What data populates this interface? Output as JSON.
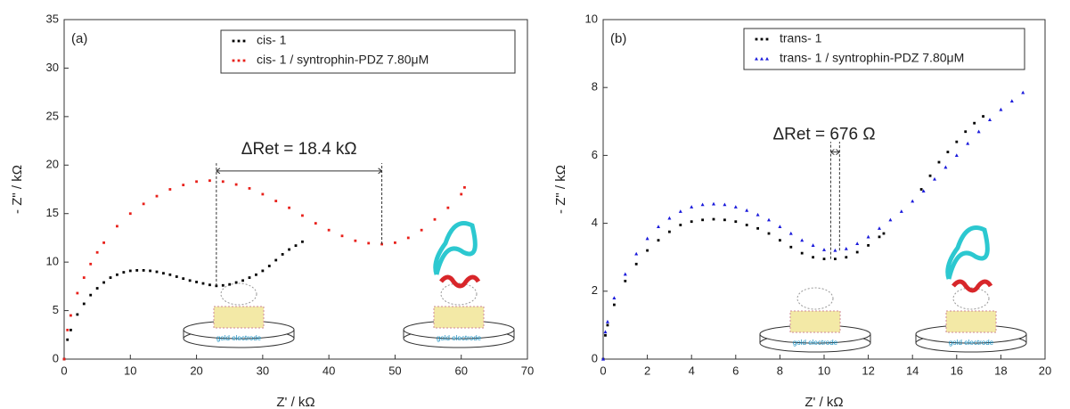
{
  "chart_data": [
    {
      "type": "scatter",
      "panel_label": "(a)",
      "x_label": "Z'  / kΩ",
      "y_label": "- Z\" / kΩ",
      "xlim": [
        0,
        70
      ],
      "ylim": [
        0,
        35
      ],
      "xticks": [
        0,
        10,
        20,
        30,
        40,
        50,
        60,
        70
      ],
      "yticks": [
        0,
        5,
        10,
        15,
        20,
        25,
        30,
        35
      ],
      "annotation": "ΔRet = 18.4 kΩ",
      "insets": [
        "gold electrode",
        "gold electrode"
      ],
      "series": [
        {
          "name": "cis- 1",
          "color": "#000000",
          "marker": "square",
          "x": [
            0,
            0.5,
            1,
            2,
            3,
            4,
            5,
            6,
            7,
            8,
            9,
            10,
            11,
            12,
            13,
            14,
            15,
            16,
            17,
            18,
            19,
            20,
            21,
            22,
            23,
            24,
            25,
            26,
            27,
            28,
            29,
            30,
            31,
            32,
            33,
            34,
            35,
            36
          ],
          "values": [
            0,
            2.0,
            3.0,
            4.6,
            5.7,
            6.6,
            7.3,
            7.9,
            8.4,
            8.7,
            8.95,
            9.1,
            9.15,
            9.15,
            9.1,
            9.0,
            8.85,
            8.7,
            8.5,
            8.3,
            8.1,
            7.95,
            7.8,
            7.65,
            7.55,
            7.6,
            7.7,
            7.9,
            8.1,
            8.4,
            8.7,
            9.1,
            9.6,
            10.2,
            10.8,
            11.3,
            11.7,
            12.1
          ]
        },
        {
          "name": "cis- 1 / syntrophin-PDZ 7.80μM",
          "color": "#e8201a",
          "marker": "square",
          "x": [
            0,
            0.5,
            1,
            2,
            3,
            4,
            5,
            6,
            8,
            10,
            12,
            14,
            16,
            18,
            20,
            22,
            24,
            26,
            28,
            30,
            32,
            34,
            36,
            38,
            40,
            42,
            44,
            46,
            48,
            50,
            52,
            54,
            56,
            58,
            60,
            60.5
          ],
          "values": [
            0,
            3.0,
            4.5,
            6.8,
            8.4,
            9.8,
            11.0,
            12.0,
            13.7,
            15.0,
            16.0,
            16.8,
            17.5,
            17.95,
            18.3,
            18.4,
            18.3,
            18.0,
            17.6,
            17.0,
            16.3,
            15.6,
            14.8,
            14.0,
            13.3,
            12.7,
            12.2,
            11.95,
            11.85,
            12.0,
            12.5,
            13.3,
            14.4,
            15.6,
            17.0,
            17.7
          ]
        }
      ]
    },
    {
      "type": "scatter",
      "panel_label": "(b)",
      "x_label": "Z' / kΩ",
      "y_label": "- Z\" / kΩ",
      "xlim": [
        0,
        20
      ],
      "ylim": [
        0,
        10
      ],
      "xticks": [
        0,
        2,
        4,
        6,
        8,
        10,
        12,
        14,
        16,
        18,
        20
      ],
      "yticks": [
        0,
        2,
        4,
        6,
        8,
        10
      ],
      "annotation": "ΔRet = 676 Ω",
      "insets": [
        "gold electrode",
        "gold electrode"
      ],
      "series": [
        {
          "name": "trans- 1",
          "color": "#000000",
          "marker": "square",
          "x": [
            0,
            0.1,
            0.2,
            0.5,
            1,
            1.5,
            2,
            2.5,
            3,
            3.5,
            4,
            4.5,
            5,
            5.5,
            6,
            6.5,
            7,
            7.5,
            8,
            8.5,
            9,
            9.5,
            10,
            10.5,
            11,
            11.5,
            12,
            12.5,
            12.7,
            14.4,
            14.8,
            15.2,
            15.6,
            16,
            16.4,
            16.8,
            17.2
          ],
          "values": [
            0,
            0.7,
            1.0,
            1.6,
            2.3,
            2.8,
            3.2,
            3.5,
            3.75,
            3.95,
            4.05,
            4.1,
            4.12,
            4.1,
            4.05,
            3.95,
            3.85,
            3.7,
            3.5,
            3.3,
            3.12,
            3.0,
            2.95,
            2.95,
            3.0,
            3.15,
            3.35,
            3.6,
            3.7,
            5.0,
            5.4,
            5.8,
            6.1,
            6.4,
            6.7,
            6.95,
            7.15
          ]
        },
        {
          "name": "trans- 1 / syntrophin-PDZ 7.80μM",
          "color": "#1a1adb",
          "marker": "triangle",
          "x": [
            0,
            0.1,
            0.2,
            0.5,
            1,
            1.5,
            2,
            2.5,
            3,
            3.5,
            4,
            4.5,
            5,
            5.5,
            6,
            6.5,
            7,
            7.5,
            8,
            8.5,
            9,
            9.5,
            10,
            10.5,
            11,
            11.5,
            12,
            12.5,
            13,
            13.5,
            14,
            14.5,
            15,
            15.5,
            16,
            16.5,
            17,
            17.5,
            18,
            18.5,
            19
          ],
          "values": [
            0,
            0.8,
            1.1,
            1.8,
            2.5,
            3.1,
            3.55,
            3.9,
            4.15,
            4.35,
            4.48,
            4.55,
            4.57,
            4.55,
            4.48,
            4.38,
            4.25,
            4.1,
            3.9,
            3.7,
            3.5,
            3.35,
            3.22,
            3.2,
            3.25,
            3.4,
            3.6,
            3.85,
            4.1,
            4.35,
            4.65,
            4.95,
            5.3,
            5.65,
            6.0,
            6.35,
            6.7,
            7.05,
            7.35,
            7.6,
            7.85
          ]
        }
      ]
    }
  ]
}
